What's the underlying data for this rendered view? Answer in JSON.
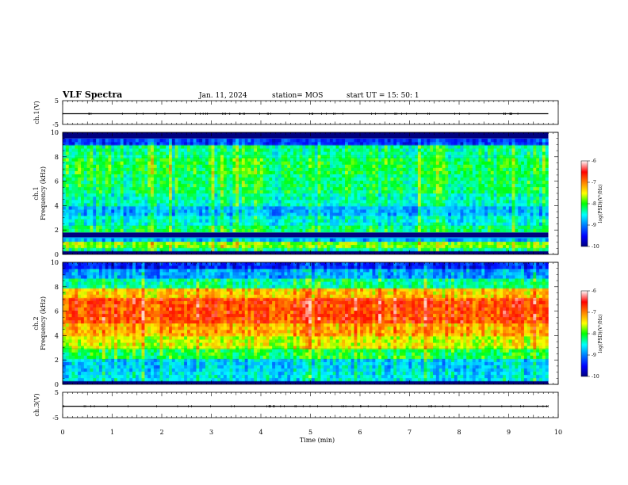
{
  "header": {
    "title": "VLF Spectra",
    "date": "Jan. 11, 2024",
    "station": "station= MOS",
    "start": "start  UT =   15: 50: 1"
  },
  "chart_data": [
    {
      "type": "line",
      "panel": "ch1-waveform",
      "ylabel": "ch.1(V)",
      "ylim": [
        -5,
        5
      ],
      "yticks": [
        "5",
        "-5"
      ],
      "x": [
        0,
        9.8
      ],
      "values": [
        -0.5,
        -0.5
      ],
      "xlim": [
        0,
        10
      ]
    },
    {
      "type": "heatmap",
      "panel": "ch1-spectrogram",
      "ylabel": "ch.1\nFrequency (kHz)",
      "ylim": [
        0,
        10
      ],
      "yticks": [
        "0",
        "2",
        "4",
        "6",
        "8",
        "10"
      ],
      "xlim": [
        0,
        10
      ],
      "data_extent_min": 9.8,
      "bands": [
        {
          "f0": 0.0,
          "f1": 0.3,
          "level": -10
        },
        {
          "f0": 0.3,
          "f1": 0.6,
          "level": -8.3
        },
        {
          "f0": 0.6,
          "f1": 1.0,
          "level": -7.8
        },
        {
          "f0": 1.0,
          "f1": 1.4,
          "level": -8.8
        },
        {
          "f0": 1.4,
          "f1": 1.8,
          "level": -10
        },
        {
          "f0": 1.8,
          "f1": 2.4,
          "level": -8.2
        },
        {
          "f0": 2.4,
          "f1": 3.2,
          "level": -8.5
        },
        {
          "f0": 3.2,
          "f1": 4.0,
          "level": -8.8
        },
        {
          "f0": 4.0,
          "f1": 5.0,
          "level": -8.4
        },
        {
          "f0": 5.0,
          "f1": 6.5,
          "level": -8.2
        },
        {
          "f0": 6.5,
          "f1": 8.0,
          "level": -8.1
        },
        {
          "f0": 8.0,
          "f1": 9.0,
          "level": -8.3
        },
        {
          "f0": 9.0,
          "f1": 9.5,
          "level": -9.3
        },
        {
          "f0": 9.5,
          "f1": 10.0,
          "level": -10
        }
      ],
      "colorbar": {
        "label": "log(PSD)(V²/Hz)",
        "range": [
          -10,
          -6
        ],
        "ticks": [
          "-6",
          "-7",
          "-8",
          "-9",
          "-10"
        ]
      }
    },
    {
      "type": "heatmap",
      "panel": "ch2-spectrogram",
      "ylabel": "ch.2\nFrequency (kHz)",
      "ylim": [
        0,
        10
      ],
      "yticks": [
        "0",
        "2",
        "4",
        "6",
        "8",
        "10"
      ],
      "xlim": [
        0,
        10
      ],
      "data_extent_min": 9.8,
      "bands": [
        {
          "f0": 0.0,
          "f1": 0.3,
          "level": -10
        },
        {
          "f0": 0.3,
          "f1": 1.0,
          "level": -8.6
        },
        {
          "f0": 1.0,
          "f1": 2.0,
          "level": -8.7
        },
        {
          "f0": 2.0,
          "f1": 3.0,
          "level": -8.1
        },
        {
          "f0": 3.0,
          "f1": 4.0,
          "level": -7.6
        },
        {
          "f0": 4.0,
          "f1": 5.0,
          "level": -7.2
        },
        {
          "f0": 5.0,
          "f1": 7.0,
          "level": -6.8
        },
        {
          "f0": 7.0,
          "f1": 7.8,
          "level": -7.3
        },
        {
          "f0": 7.8,
          "f1": 8.6,
          "level": -8.3
        },
        {
          "f0": 8.6,
          "f1": 9.4,
          "level": -8.9
        },
        {
          "f0": 9.4,
          "f1": 10.0,
          "level": -9.4
        }
      ],
      "colorbar": {
        "label": "log(PSD)(V²/Hz)",
        "range": [
          -10,
          -6
        ],
        "ticks": [
          "-6",
          "-7",
          "-8",
          "-9",
          "-10"
        ]
      }
    },
    {
      "type": "line",
      "panel": "ch3-waveform",
      "ylabel": "ch.3(V)",
      "ylim": [
        -5,
        5
      ],
      "yticks": [
        "5",
        "-5"
      ],
      "x": [
        0,
        9.8
      ],
      "values": [
        -0.5,
        -0.5
      ],
      "xlim": [
        0,
        10
      ]
    }
  ],
  "xaxis": {
    "label": "Time  (min)",
    "ticks": [
      "0",
      "1",
      "2",
      "3",
      "4",
      "5",
      "6",
      "7",
      "8",
      "9",
      "10"
    ]
  },
  "colors": {
    "cmap": [
      "#00007f",
      "#0000ff",
      "#007fff",
      "#00ffff",
      "#00ff00",
      "#7fff00",
      "#ffff00",
      "#ff7f00",
      "#ff0000",
      "#ff9fbf",
      "#ffffff"
    ]
  }
}
